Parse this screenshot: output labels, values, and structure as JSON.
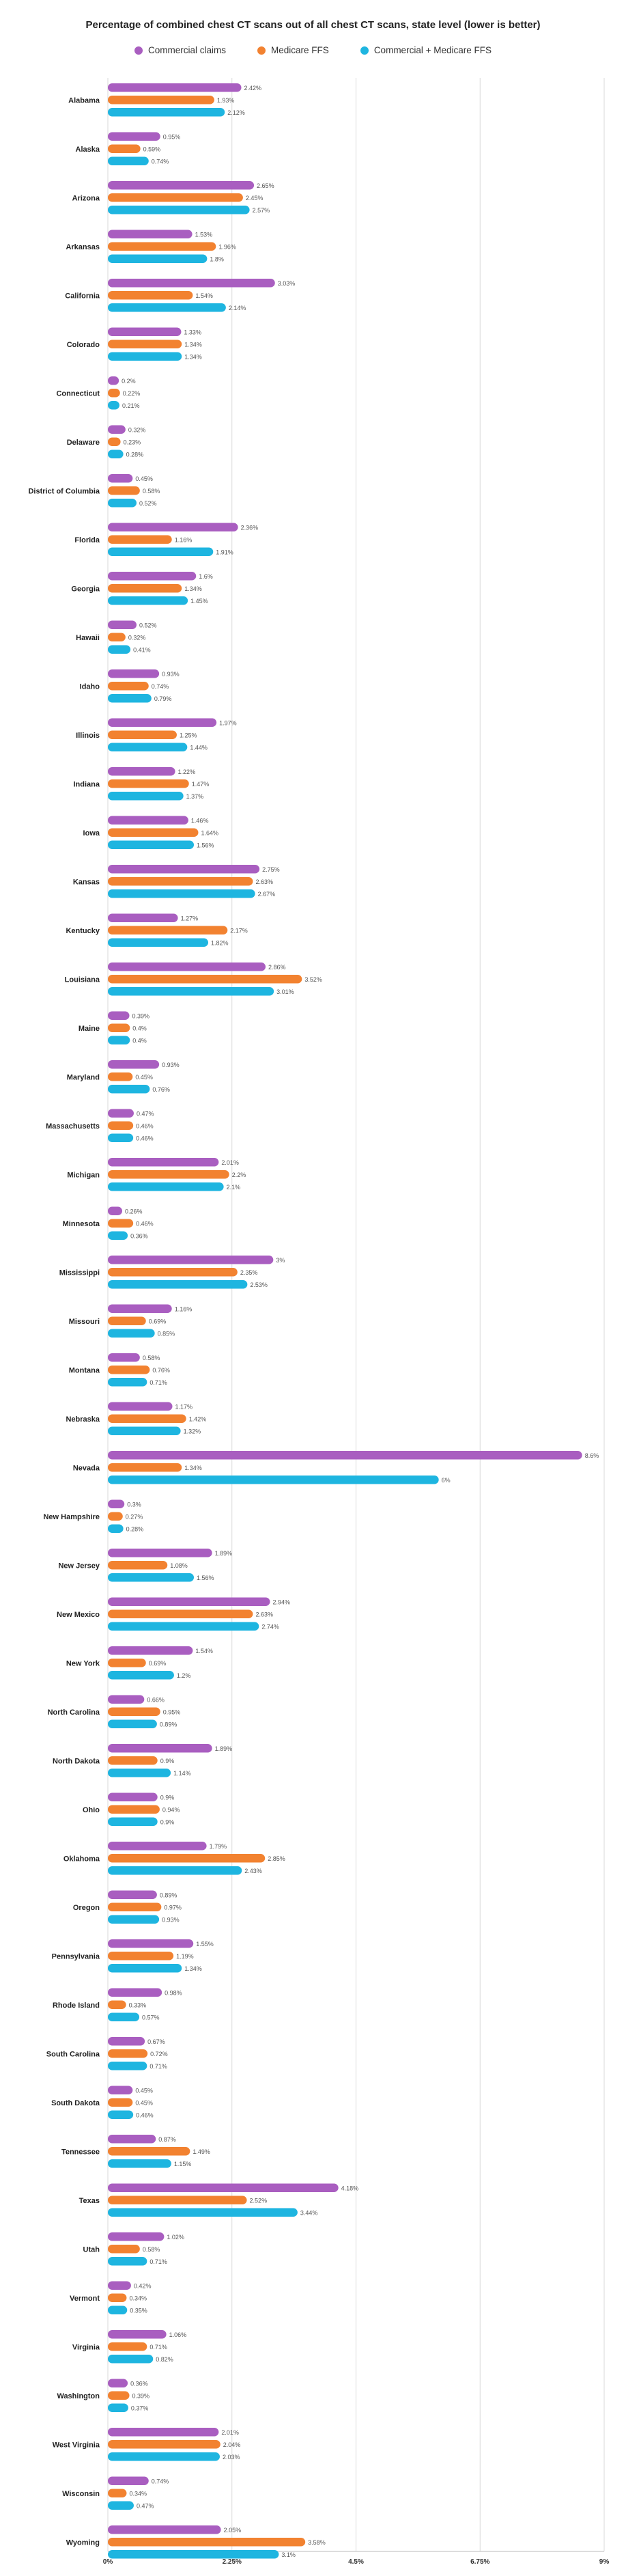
{
  "chart_data": {
    "type": "bar",
    "orientation": "horizontal",
    "title": "Percentage of combined chest CT scans out of all chest CT scans, state level (lower is better)",
    "legend_position": "top",
    "grid": true,
    "xlim": [
      0,
      9
    ],
    "x_ticks": [
      {
        "value": 0,
        "label": "0%"
      },
      {
        "value": 2.25,
        "label": "2.25%"
      },
      {
        "value": 4.5,
        "label": "4.5%"
      },
      {
        "value": 6.75,
        "label": "6.75%"
      },
      {
        "value": 9,
        "label": "9%"
      }
    ],
    "categories": [
      "Alabama",
      "Alaska",
      "Arizona",
      "Arkansas",
      "California",
      "Colorado",
      "Connecticut",
      "Delaware",
      "District of Columbia",
      "Florida",
      "Georgia",
      "Hawaii",
      "Idaho",
      "Illinois",
      "Indiana",
      "Iowa",
      "Kansas",
      "Kentucky",
      "Louisiana",
      "Maine",
      "Maryland",
      "Massachusetts",
      "Michigan",
      "Minnesota",
      "Mississippi",
      "Missouri",
      "Montana",
      "Nebraska",
      "Nevada",
      "New Hampshire",
      "New Jersey",
      "New Mexico",
      "New York",
      "North Carolina",
      "North Dakota",
      "Ohio",
      "Oklahoma",
      "Oregon",
      "Pennsylvania",
      "Rhode Island",
      "South Carolina",
      "South Dakota",
      "Tennessee",
      "Texas",
      "Utah",
      "Vermont",
      "Virginia",
      "Washington",
      "West Virginia",
      "Wisconsin",
      "Wyoming"
    ],
    "series": [
      {
        "name": "Commercial claims",
        "color": "#a95ec0",
        "values": [
          2.42,
          0.95,
          2.65,
          1.53,
          3.03,
          1.33,
          0.2,
          0.32,
          0.45,
          2.36,
          1.6,
          0.52,
          0.93,
          1.97,
          1.22,
          1.46,
          2.75,
          1.27,
          2.86,
          0.39,
          0.93,
          0.47,
          2.01,
          0.26,
          3.0,
          1.16,
          0.58,
          1.17,
          8.6,
          0.3,
          1.89,
          2.94,
          1.54,
          0.66,
          1.89,
          0.9,
          1.79,
          0.89,
          1.55,
          0.98,
          0.67,
          0.45,
          0.87,
          4.18,
          1.02,
          0.42,
          1.06,
          0.36,
          2.01,
          0.74,
          2.05
        ]
      },
      {
        "name": "Medicare FFS",
        "color": "#f28230",
        "values": [
          1.93,
          0.59,
          2.45,
          1.96,
          1.54,
          1.34,
          0.22,
          0.23,
          0.58,
          1.16,
          1.34,
          0.32,
          0.74,
          1.25,
          1.47,
          1.64,
          2.63,
          2.17,
          3.52,
          0.4,
          0.45,
          0.46,
          2.2,
          0.46,
          2.35,
          0.69,
          0.76,
          1.42,
          1.34,
          0.27,
          1.08,
          2.63,
          0.69,
          0.95,
          0.9,
          0.94,
          2.85,
          0.97,
          1.19,
          0.33,
          0.72,
          0.45,
          1.49,
          2.52,
          0.58,
          0.34,
          0.71,
          0.39,
          2.04,
          0.34,
          3.58
        ]
      },
      {
        "name": "Commercial + Medicare FFS",
        "color": "#1eb5e0",
        "values": [
          2.12,
          0.74,
          2.57,
          1.8,
          2.14,
          1.34,
          0.21,
          0.28,
          0.52,
          1.91,
          1.45,
          0.41,
          0.79,
          1.44,
          1.37,
          1.56,
          2.67,
          1.82,
          3.01,
          0.4,
          0.76,
          0.46,
          2.1,
          0.36,
          2.53,
          0.85,
          0.71,
          1.32,
          6.0,
          0.28,
          1.56,
          2.74,
          1.2,
          0.89,
          1.14,
          0.9,
          2.43,
          0.93,
          1.34,
          0.57,
          0.71,
          0.46,
          1.15,
          3.44,
          0.71,
          0.35,
          0.82,
          0.37,
          2.03,
          0.47,
          3.1
        ]
      }
    ]
  }
}
